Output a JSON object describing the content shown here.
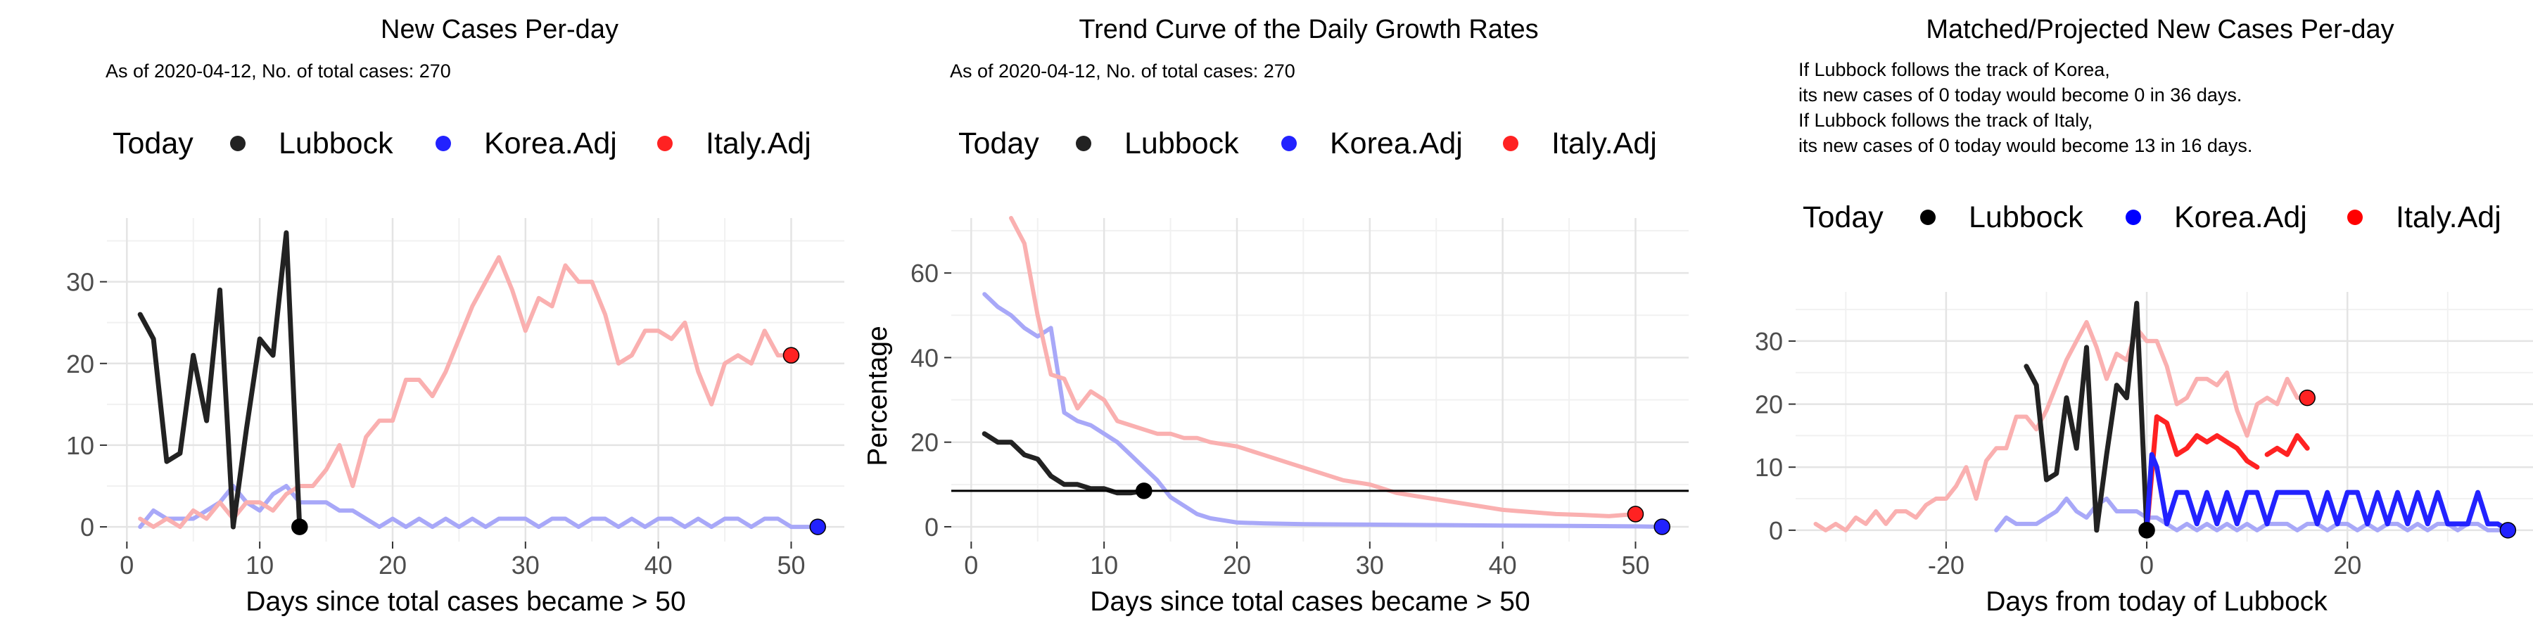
{
  "colors": {
    "lubbock": "#222222",
    "korea": "#2222ff",
    "italy": "#ff2222",
    "korea_line": "#a8a8f8",
    "italy_line": "#fab0b0",
    "grid_major": "#e4e4e4",
    "grid_minor": "#f1f1f1",
    "axis_text": "#4d4d4d"
  },
  "legend_labels": {
    "today": "Today",
    "lubbock": "Lubbock",
    "korea": "Korea.Adj",
    "italy": "Italy.Adj"
  },
  "chart_data": [
    {
      "type": "line",
      "title": "New Cases Per-day",
      "subtitle": "As of 2020-04-12, No. of total cases: 270",
      "xlabel": "Days since total cases became > 50",
      "ylabel": "",
      "xlim": [
        -1.5,
        54
      ],
      "ylim": [
        -1.8,
        37.8
      ],
      "xticks": [
        0,
        10,
        20,
        30,
        40,
        50
      ],
      "yticks": [
        0,
        10,
        20,
        30
      ],
      "legend": "top",
      "grid": true,
      "series": [
        {
          "name": "Korea.Adj",
          "key": "korea",
          "x": [
            1,
            2,
            3,
            4,
            5,
            6,
            7,
            8,
            9,
            10,
            11,
            12,
            13,
            14,
            15,
            16,
            17,
            18,
            19,
            20,
            21,
            22,
            23,
            24,
            25,
            26,
            27,
            28,
            29,
            30,
            31,
            32,
            33,
            34,
            35,
            36,
            37,
            38,
            39,
            40,
            41,
            42,
            43,
            44,
            45,
            46,
            47,
            48,
            49,
            50,
            51,
            52
          ],
          "y": [
            0,
            2,
            1,
            1,
            1,
            2,
            3,
            5,
            3,
            2,
            4,
            5,
            3,
            3,
            3,
            2,
            2,
            1,
            0,
            1,
            0,
            1,
            0,
            1,
            0,
            1,
            0,
            1,
            1,
            1,
            0,
            1,
            1,
            0,
            1,
            1,
            0,
            1,
            0,
            1,
            1,
            0,
            1,
            0,
            1,
            1,
            0,
            1,
            1,
            0,
            0,
            0
          ]
        },
        {
          "name": "Italy.Adj",
          "key": "italy",
          "x": [
            1,
            2,
            3,
            4,
            5,
            6,
            7,
            8,
            9,
            10,
            11,
            12,
            13,
            14,
            15,
            16,
            17,
            18,
            19,
            20,
            21,
            22,
            23,
            24,
            25,
            26,
            27,
            28,
            29,
            30,
            31,
            32,
            33,
            34,
            35,
            36,
            37,
            38,
            39,
            40,
            41,
            42,
            43,
            44,
            45,
            46,
            47,
            48,
            49,
            50
          ],
          "y": [
            1,
            0,
            1,
            0,
            2,
            1,
            3,
            1,
            3,
            3,
            2,
            4,
            5,
            5,
            7,
            10,
            5,
            11,
            13,
            13,
            18,
            18,
            16,
            19,
            23,
            27,
            30,
            33,
            29,
            24,
            28,
            27,
            32,
            30,
            30,
            26,
            20,
            21,
            24,
            24,
            23,
            25,
            19,
            15,
            20,
            21,
            20,
            24,
            21,
            21
          ]
        },
        {
          "name": "Lubbock",
          "key": "lubbock",
          "x": [
            1,
            2,
            3,
            4,
            5,
            6,
            7,
            8,
            9,
            10,
            11,
            12,
            13
          ],
          "y": [
            26,
            23,
            8,
            9,
            21,
            13,
            29,
            0,
            12,
            23,
            21,
            36,
            0
          ]
        }
      ],
      "today_points": [
        {
          "key": "lubbock",
          "x": 13,
          "y": 0
        },
        {
          "key": "italy",
          "x": 50,
          "y": 21
        },
        {
          "key": "korea",
          "x": 52,
          "y": 0
        }
      ]
    },
    {
      "type": "line",
      "title": "Trend Curve of the Daily Growth Rates",
      "subtitle": "As of 2020-04-12, No. of total cases: 270",
      "xlabel": "Days since total cases became > 50",
      "ylabel": "Percentage",
      "xlim": [
        -1.5,
        54
      ],
      "ylim": [
        -3.5,
        73
      ],
      "xticks": [
        0,
        10,
        20,
        30,
        40,
        50
      ],
      "yticks": [
        0,
        20,
        40,
        60
      ],
      "legend": "top",
      "grid": true,
      "hline": 8.5,
      "series": [
        {
          "name": "Korea.Adj",
          "key": "korea",
          "x": [
            1,
            2,
            3,
            4,
            5,
            6,
            7,
            8,
            9,
            10,
            11,
            12,
            13,
            14,
            15,
            16,
            17,
            18,
            19,
            20,
            22,
            25,
            30,
            35,
            40,
            45,
            50,
            52
          ],
          "y": [
            55,
            52,
            50,
            47,
            45,
            47,
            27,
            25,
            24,
            22,
            20,
            17,
            14,
            11,
            7,
            5,
            3,
            2,
            1.5,
            1,
            0.8,
            0.6,
            0.5,
            0.4,
            0.3,
            0.2,
            0.1,
            0
          ]
        },
        {
          "name": "Italy.Adj",
          "key": "italy",
          "x": [
            3,
            4,
            5,
            6,
            7,
            8,
            9,
            10,
            11,
            12,
            13,
            14,
            15,
            16,
            17,
            18,
            20,
            22,
            24,
            26,
            28,
            30,
            32,
            34,
            36,
            38,
            40,
            42,
            44,
            46,
            48,
            50
          ],
          "y": [
            74,
            67,
            50,
            36,
            35,
            28,
            32,
            30,
            25,
            24,
            23,
            22,
            22,
            21,
            21,
            20,
            19,
            17,
            15,
            13,
            11,
            10,
            8,
            7,
            6,
            5,
            4,
            3.5,
            3,
            2.8,
            2.5,
            3
          ]
        },
        {
          "name": "Lubbock",
          "key": "lubbock",
          "x": [
            1,
            2,
            3,
            4,
            5,
            6,
            7,
            8,
            9,
            10,
            11,
            12,
            13
          ],
          "y": [
            22,
            20,
            20,
            17,
            16,
            12,
            10,
            10,
            9,
            9,
            8,
            8,
            8.5
          ]
        }
      ],
      "today_points": [
        {
          "key": "lubbock",
          "x": 13,
          "y": 8.5
        },
        {
          "key": "italy",
          "x": 50,
          "y": 3
        },
        {
          "key": "korea",
          "x": 52,
          "y": 0
        }
      ]
    },
    {
      "type": "line",
      "title": "Matched/Projected New Cases Per-day",
      "subtitle_lines": [
        "If Lubbock follows the track of Korea,",
        "its new cases of 0 today would become 0 in 36 days.",
        "If Lubbock follows the track of Italy,",
        "its new cases of 0 today would become 13 in 16 days."
      ],
      "xlabel": "Days from today of Lubbock",
      "ylabel": "",
      "xlim": [
        -35,
        38.5
      ],
      "ylim": [
        -1.8,
        37.8
      ],
      "xticks": [
        -20,
        0,
        20
      ],
      "yticks": [
        0,
        10,
        20,
        30
      ],
      "legend": "top",
      "grid": true,
      "series": [
        {
          "name": "Italy.Adj",
          "key": "italy",
          "style": "faded",
          "x": [
            -33,
            -32,
            -31,
            -30,
            -29,
            -28,
            -27,
            -26,
            -25,
            -24,
            -23,
            -22,
            -21,
            -20,
            -19,
            -18,
            -17,
            -16,
            -15,
            -14,
            -13,
            -12,
            -11,
            -10,
            -9,
            -8,
            -7,
            -6,
            -5,
            -4,
            -3,
            -2,
            -1,
            0,
            1,
            2,
            3,
            4,
            5,
            6,
            7,
            8,
            9,
            10,
            11,
            12,
            13,
            14,
            15,
            16
          ],
          "y": [
            1,
            0,
            1,
            0,
            2,
            1,
            3,
            1,
            3,
            3,
            2,
            4,
            5,
            5,
            7,
            10,
            5,
            11,
            13,
            13,
            18,
            18,
            16,
            19,
            23,
            27,
            30,
            33,
            29,
            24,
            28,
            27,
            32,
            30,
            30,
            26,
            20,
            21,
            24,
            24,
            23,
            25,
            19,
            15,
            20,
            21,
            20,
            24,
            21,
            21
          ]
        },
        {
          "name": "Korea.Adj",
          "key": "korea",
          "style": "faded",
          "x": [
            -15,
            -14,
            -13,
            -12,
            -11,
            -10,
            -9,
            -8,
            -7,
            -6,
            -5,
            -4,
            -3,
            -2,
            -1,
            0,
            1,
            2,
            3,
            4,
            5,
            6,
            7,
            8,
            9,
            10,
            11,
            12,
            13,
            14,
            15,
            16,
            17,
            18,
            19,
            20,
            21,
            22,
            23,
            24,
            25,
            26,
            27,
            28,
            29,
            30,
            31,
            32,
            33,
            34,
            35,
            36
          ],
          "y": [
            0,
            2,
            1,
            1,
            1,
            2,
            3,
            5,
            3,
            2,
            4,
            5,
            3,
            3,
            3,
            2,
            2,
            1,
            0,
            1,
            0,
            1,
            0,
            1,
            0,
            1,
            0,
            1,
            1,
            1,
            0,
            1,
            1,
            0,
            1,
            1,
            0,
            1,
            0,
            1,
            1,
            0,
            1,
            0,
            1,
            1,
            0,
            1,
            1,
            0,
            0,
            0
          ]
        },
        {
          "name": "Lubbock",
          "key": "lubbock",
          "style": "solid",
          "x": [
            -12,
            -11,
            -10,
            -9,
            -8,
            -7,
            -6,
            -5,
            -4,
            -3,
            -2,
            -1,
            0
          ],
          "y": [
            26,
            23,
            8,
            9,
            21,
            13,
            29,
            0,
            12,
            23,
            21,
            36,
            0
          ]
        },
        {
          "name": "Italy.Adj projected",
          "key": "italy",
          "style": "solid",
          "x": [
            0,
            1,
            2,
            3,
            4,
            5,
            6,
            7,
            8,
            9,
            10,
            11,
            null,
            12,
            13,
            14,
            15,
            16
          ],
          "y": [
            0,
            18,
            17,
            12,
            13,
            15,
            14,
            15,
            14,
            13,
            11,
            10,
            null,
            12,
            13,
            12,
            15,
            13
          ]
        },
        {
          "name": "Korea.Adj projected",
          "key": "korea",
          "style": "solid",
          "x": [
            0,
            0.5,
            1,
            2,
            3,
            4,
            5,
            6,
            7,
            8,
            9,
            10,
            11,
            12,
            13,
            14,
            15,
            16,
            17,
            18,
            19,
            20,
            21,
            22,
            23,
            24,
            25,
            26,
            27,
            28,
            29,
            30,
            31,
            32,
            33,
            34,
            35,
            36
          ],
          "y": [
            0,
            12,
            10,
            1,
            6,
            6,
            1,
            6,
            1,
            6,
            1,
            6,
            6,
            1,
            6,
            6,
            6,
            6,
            1,
            6,
            1,
            6,
            6,
            1,
            6,
            1,
            6,
            1,
            6,
            1,
            6,
            1,
            1,
            1,
            6,
            1,
            1,
            0
          ]
        }
      ],
      "today_points": [
        {
          "key": "lubbock",
          "x": 0,
          "y": 0
        },
        {
          "key": "italy",
          "x": 16,
          "y": 21
        },
        {
          "key": "korea",
          "x": 36,
          "y": 0
        }
      ]
    }
  ]
}
